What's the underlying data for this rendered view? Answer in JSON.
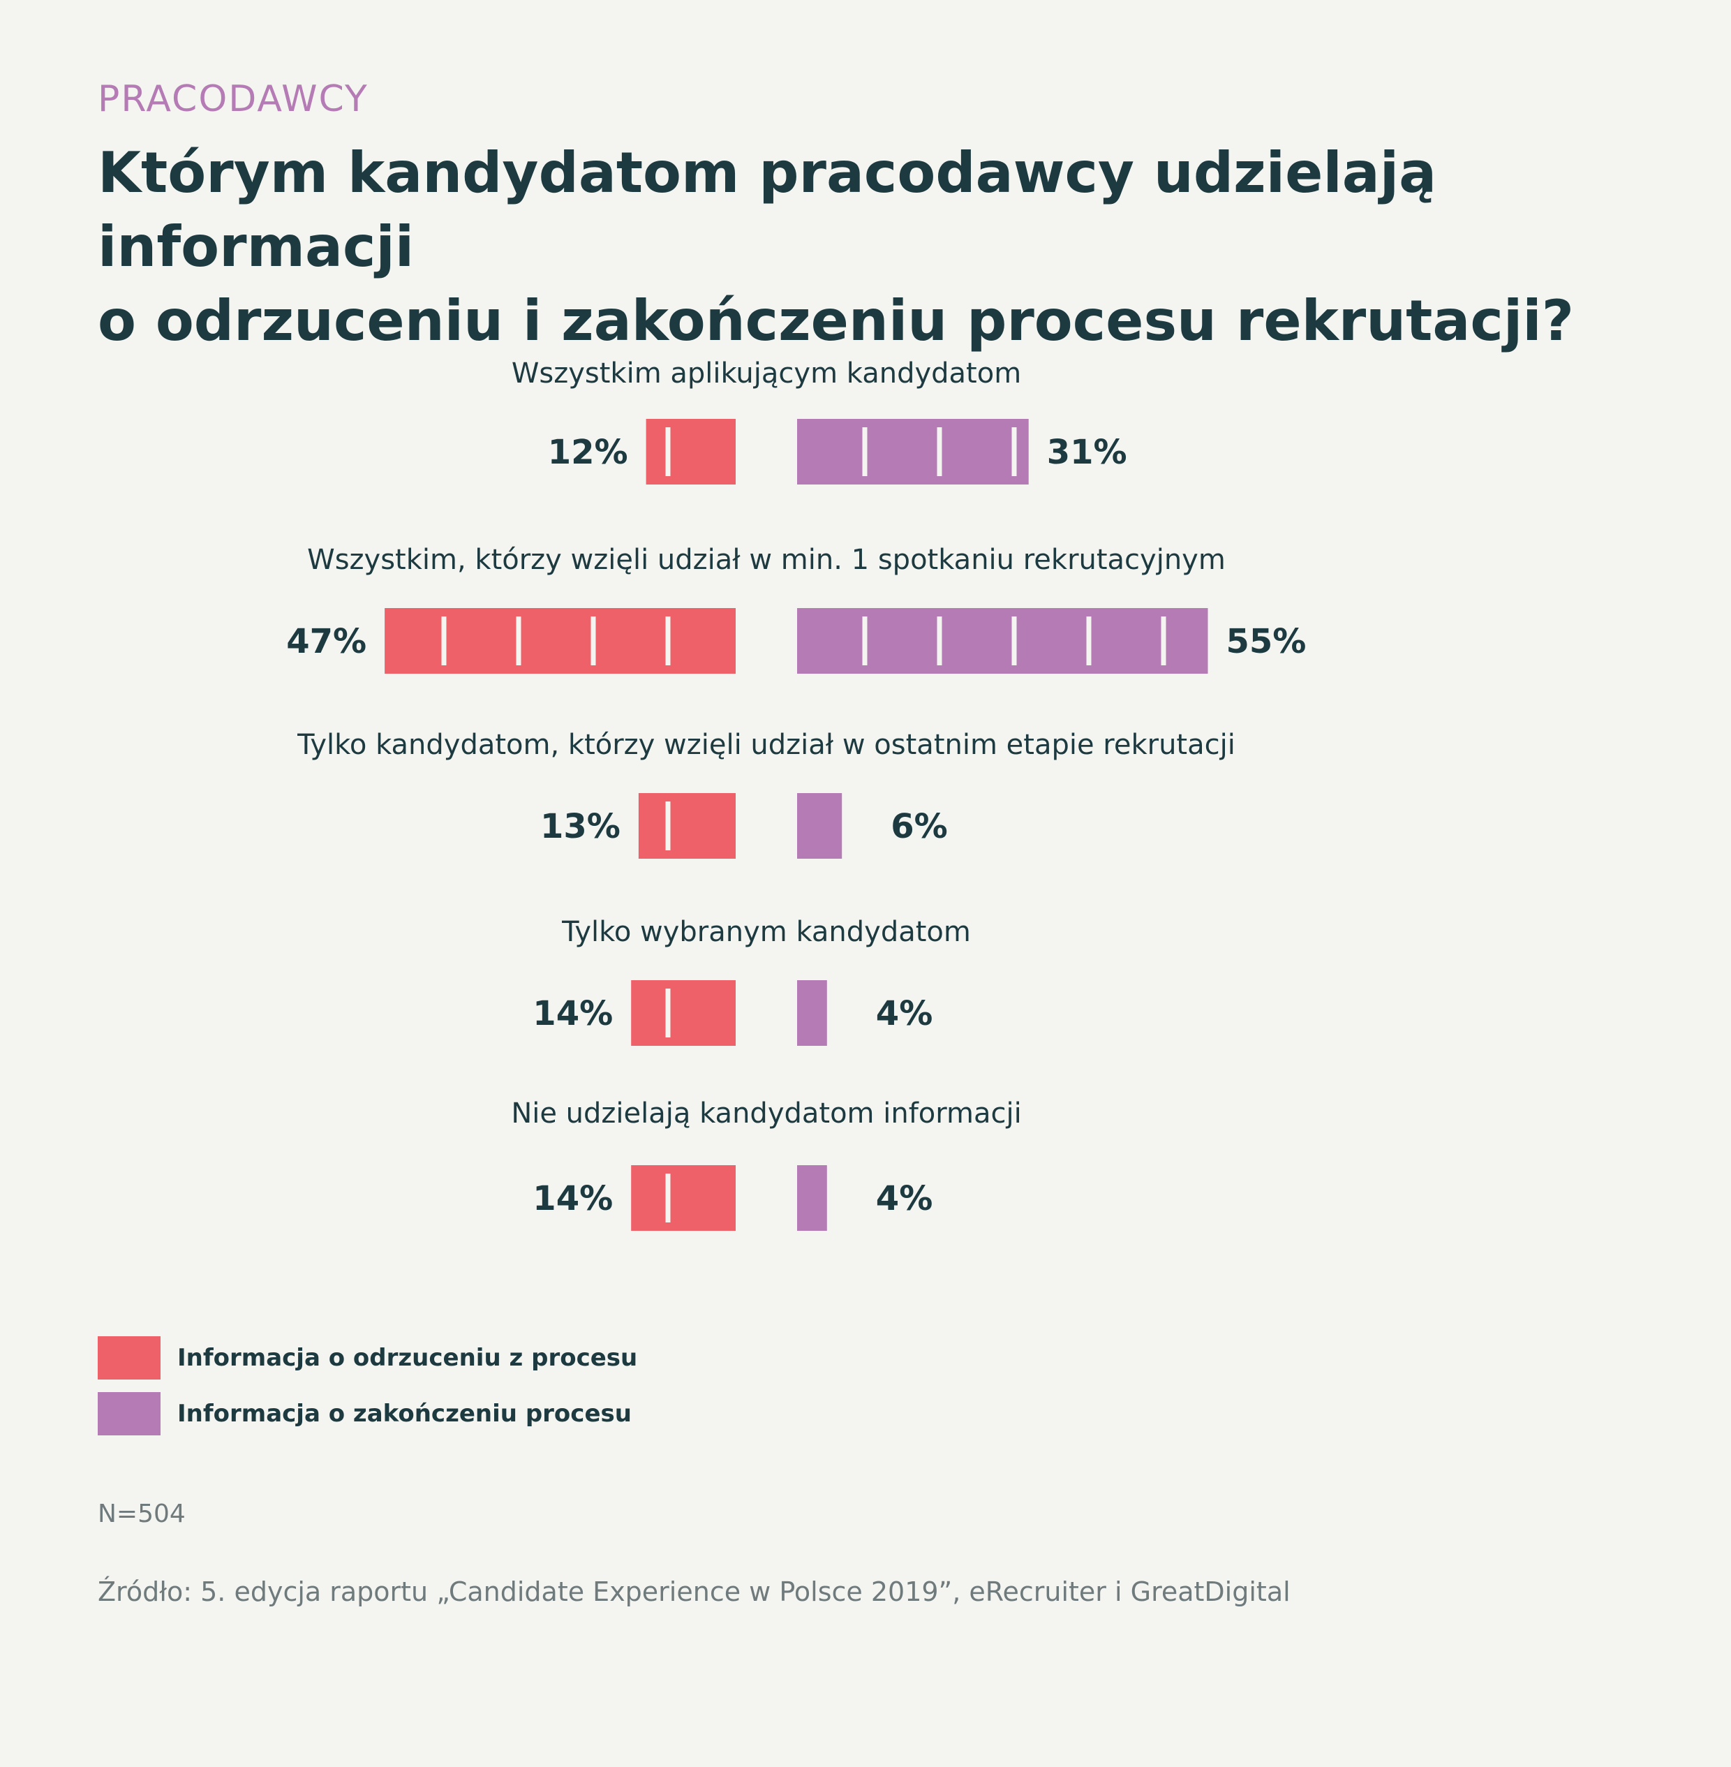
{
  "header": {
    "kicker": "PRACODAWCY",
    "title_line1": "Którym kandydatom pracodawcy udzielają informacji",
    "title_line2": "o odrzuceniu i zakończeniu procesu rekrutacji?"
  },
  "colors": {
    "rejection": "#ee6168",
    "completion": "#b47bb4",
    "text": "#1d3a40"
  },
  "chart_data": {
    "type": "bar",
    "orientation": "horizontal-diverging",
    "categories": [
      "Wszystkim aplikującym kandydatom",
      "Wszystkim, którzy wzięli udział w min. 1 spotkaniu rekrutacyjnym",
      "Tylko kandydatom, którzy wzięli udział w ostatnim etapie rekrutacji",
      "Tylko wybranym kandydatom",
      "Nie udzielają kandydatom informacji"
    ],
    "series": [
      {
        "name": "Informacja o odrzuceniu z procesu",
        "values": [
          12,
          47,
          13,
          14,
          14
        ],
        "labels": [
          "12%",
          "47%",
          "13%",
          "14%",
          "14%"
        ]
      },
      {
        "name": "Informacja o zakończeniu procesu",
        "values": [
          31,
          55,
          6,
          4,
          4
        ],
        "labels": [
          "31%",
          "55%",
          "6%",
          "4%",
          "4%"
        ]
      }
    ],
    "legend": "bottom-left"
  },
  "footer": {
    "note": "N=504",
    "source": "Źródło: 5. edycja raportu „Candidate Experience w Polsce 2019”, eRecruiter i GreatDigital"
  }
}
